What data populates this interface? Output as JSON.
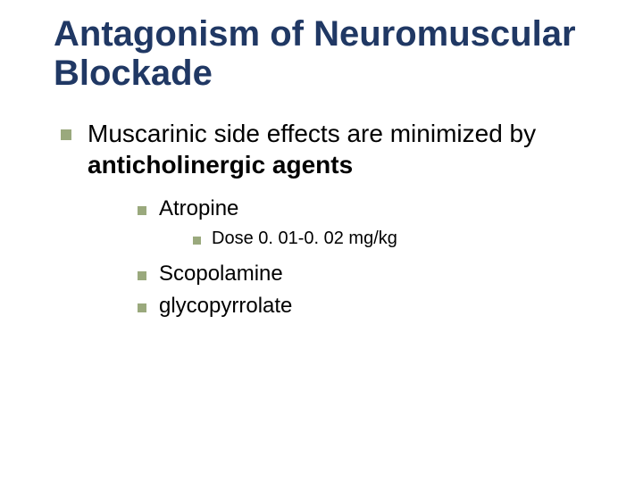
{
  "colors": {
    "title": "#203864",
    "bullet": "#9aa97d",
    "text": "#000000",
    "background": "#ffffff"
  },
  "typography": {
    "title_fontsize": 40,
    "lvl0_fontsize": 28,
    "lvl1_fontsize": 24,
    "lvl2_fontsize": 20,
    "title_weight": "700",
    "font_family": "Verdana"
  },
  "bullet_sizes": {
    "lvl0": 12,
    "lvl1": 10,
    "lvl2": 9
  },
  "slide": {
    "title": "Antagonism of Neuromuscular Blockade",
    "main": {
      "pre": "Muscarinic side effects are minimized by ",
      "bold": "anticholinergic agents"
    },
    "items": {
      "atropine": "Atropine",
      "atropine_dose": "Dose 0. 01-0. 02 mg/kg",
      "scopolamine": "Scopolamine",
      "glycopyrrolate": "glycopyrrolate"
    }
  }
}
